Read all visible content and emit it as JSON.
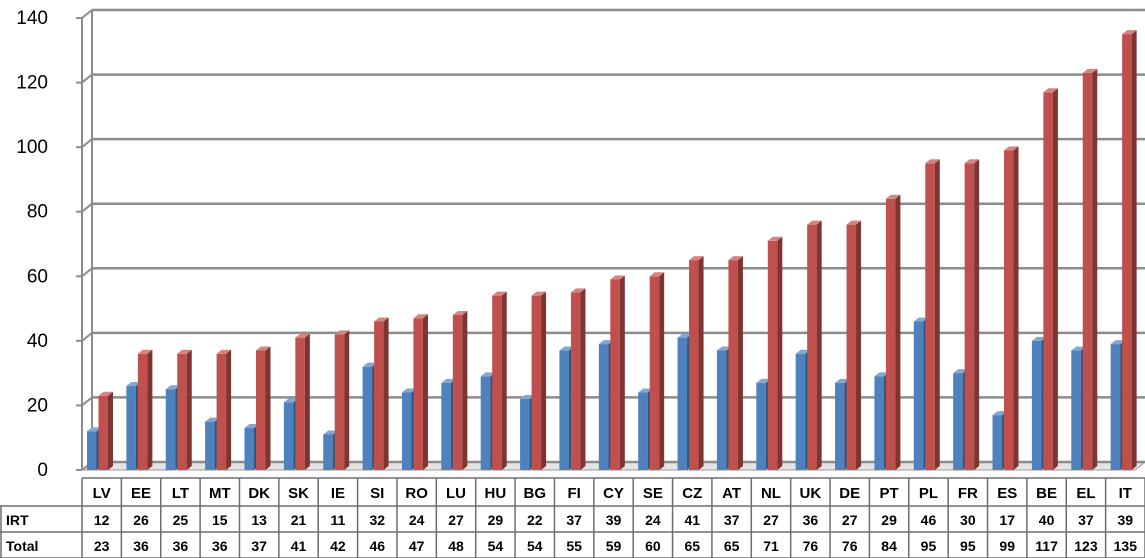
{
  "chart_data": {
    "type": "bar",
    "categories": [
      "LV",
      "EE",
      "LT",
      "MT",
      "DK",
      "SK",
      "IE",
      "SI",
      "RO",
      "LU",
      "HU",
      "BG",
      "FI",
      "CY",
      "SE",
      "CZ",
      "AT",
      "NL",
      "UK",
      "DE",
      "PT",
      "PL",
      "FR",
      "ES",
      "BE",
      "EL",
      "IT"
    ],
    "series": [
      {
        "name": "IRT",
        "values": [
          12,
          26,
          25,
          15,
          13,
          21,
          11,
          32,
          24,
          27,
          29,
          22,
          37,
          39,
          24,
          41,
          37,
          27,
          36,
          27,
          29,
          46,
          30,
          17,
          40,
          37,
          39
        ],
        "color": "#4f81bd"
      },
      {
        "name": "Total",
        "values": [
          23,
          36,
          36,
          36,
          37,
          41,
          42,
          46,
          47,
          48,
          54,
          54,
          55,
          59,
          60,
          65,
          65,
          71,
          76,
          76,
          84,
          95,
          95,
          99,
          117,
          123,
          135
        ],
        "color": "#c0504d"
      }
    ],
    "ylim": [
      0,
      140
    ],
    "yticks": [
      0,
      20,
      40,
      60,
      80,
      100,
      120,
      140
    ],
    "grid": true,
    "data_table": true
  }
}
